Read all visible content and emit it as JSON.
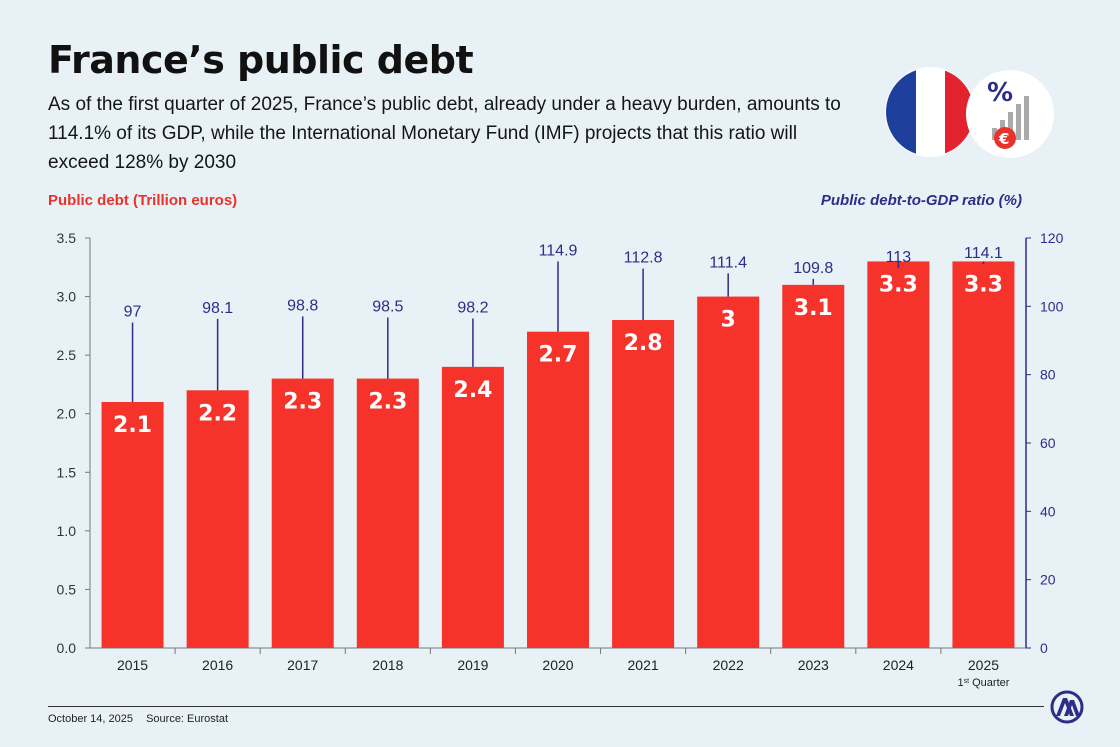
{
  "header": {
    "title": "France’s public debt",
    "subtitle": "As of the first quarter of 2025, France’s public debt, already under a heavy burden, amounts to 114.1% of its GDP, while the International Monetary Fund (IMF) projects that this ratio will exceed 128% by 2030"
  },
  "footer": {
    "date": "October 14, 2025",
    "source": "Source: Eurostat"
  },
  "icons": {
    "flag": "france-flag-icon",
    "badge": "percent-euro-chart-icon",
    "logo": "anadolu-agency-logo"
  },
  "chart_data": {
    "type": "bar",
    "title": "France’s public debt",
    "categories": [
      "2015",
      "2016",
      "2017",
      "2018",
      "2019",
      "2020",
      "2021",
      "2022",
      "2023",
      "2024",
      "2025"
    ],
    "category_note": {
      "index": 10,
      "base": "1",
      "sup": "st",
      "text": " Quarter"
    },
    "series": [
      {
        "name": "Public debt (Trillion euros)",
        "axis": "left",
        "color": "#f5332b",
        "values": [
          2.1,
          2.2,
          2.3,
          2.3,
          2.4,
          2.7,
          2.8,
          3,
          3.1,
          3.3,
          3.3
        ],
        "labels": [
          "2.1",
          "2.2",
          "2.3",
          "2.3",
          "2.4",
          "2.7",
          "2.8",
          "3",
          "3.1",
          "3.3",
          "3.3"
        ]
      },
      {
        "name": "Public debt-to-GDP ratio (%)",
        "axis": "right",
        "color": "#2b2f86",
        "values": [
          97,
          98.1,
          98.8,
          98.5,
          98.2,
          114.9,
          112.8,
          111.4,
          109.8,
          113,
          114.1
        ],
        "labels": [
          "97",
          "98.1",
          "98.8",
          "98.5",
          "98.2",
          "114.9",
          "112.8",
          "111.4",
          "109.8",
          "113",
          "114.1"
        ]
      }
    ],
    "y_left": {
      "label": "Public debt (Trillion euros)",
      "min": 0,
      "max": 3.5,
      "ticks": [
        "0.0",
        "0.5",
        "1.0",
        "1.5",
        "2.0",
        "2.5",
        "3.0",
        "3.5"
      ]
    },
    "y_right": {
      "label": "Public debt-to-GDP ratio (%)",
      "min": 0,
      "max": 120,
      "ticks": [
        "0",
        "20",
        "40",
        "60",
        "80",
        "100",
        "120"
      ]
    }
  }
}
